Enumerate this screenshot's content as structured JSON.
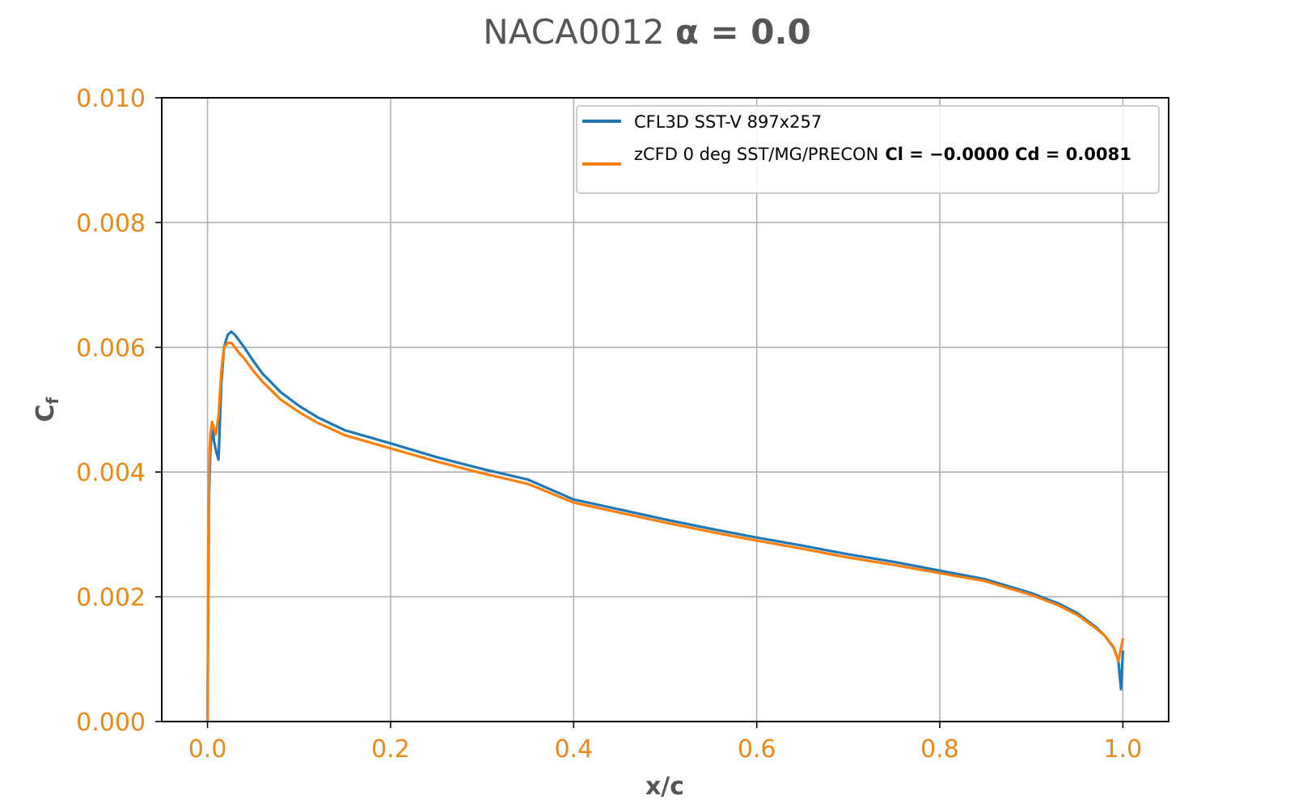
{
  "chart_data": {
    "type": "line",
    "title": {
      "prefix": "NACA0012 ",
      "math": "α = 0.0"
    },
    "xlabel": "x/c",
    "ylabel": {
      "base": "C",
      "sub": "f"
    },
    "xlim": [
      -0.05,
      1.05
    ],
    "ylim": [
      0.0,
      0.01
    ],
    "xticks": [
      0.0,
      0.2,
      0.4,
      0.6,
      0.8,
      1.0
    ],
    "xtick_labels": [
      "0.0",
      "0.2",
      "0.4",
      "0.6",
      "0.8",
      "1.0"
    ],
    "yticks": [
      0.0,
      0.002,
      0.004,
      0.006,
      0.008,
      0.01
    ],
    "ytick_labels": [
      "0.000",
      "0.002",
      "0.004",
      "0.006",
      "0.008",
      "0.010"
    ],
    "grid": true,
    "legend_position": "top-right",
    "colors": {
      "tick_labels": "#e8891a",
      "title": "#555555",
      "grid": "#b0b0b0"
    },
    "series": [
      {
        "name": "CFL3D SST-V 897x257",
        "color": "#1f77b4",
        "x": [
          0.0,
          0.0015,
          0.003,
          0.005,
          0.007,
          0.01,
          0.012,
          0.015,
          0.018,
          0.022,
          0.026,
          0.03,
          0.035,
          0.04,
          0.05,
          0.06,
          0.08,
          0.1,
          0.12,
          0.15,
          0.2,
          0.25,
          0.3,
          0.35,
          0.4,
          0.45,
          0.5,
          0.55,
          0.6,
          0.65,
          0.7,
          0.75,
          0.8,
          0.85,
          0.9,
          0.93,
          0.95,
          0.97,
          0.98,
          0.99,
          0.995,
          0.998,
          1.0
        ],
        "y": [
          0.0,
          0.0035,
          0.0043,
          0.0048,
          0.0045,
          0.0043,
          0.0042,
          0.0054,
          0.006,
          0.0062,
          0.00625,
          0.0062,
          0.0061,
          0.006,
          0.00578,
          0.00558,
          0.00528,
          0.00506,
          0.00488,
          0.00467,
          0.00446,
          0.00424,
          0.00405,
          0.00388,
          0.00356,
          0.0034,
          0.00324,
          0.00309,
          0.00295,
          0.00282,
          0.00268,
          0.00256,
          0.00242,
          0.00228,
          0.00206,
          0.00189,
          0.00174,
          0.00152,
          0.00138,
          0.00118,
          0.00098,
          0.00052,
          0.00112
        ]
      },
      {
        "name": "zCFD 0 deg SST/MG/PRECON",
        "name_math": "Cl = −0.0000 Cd = 0.0081",
        "color": "#ff7f0e",
        "x": [
          0.0,
          0.001,
          0.002,
          0.003,
          0.005,
          0.007,
          0.009,
          0.012,
          0.015,
          0.018,
          0.022,
          0.026,
          0.03,
          0.035,
          0.04,
          0.05,
          0.06,
          0.08,
          0.1,
          0.12,
          0.15,
          0.2,
          0.25,
          0.3,
          0.35,
          0.4,
          0.45,
          0.5,
          0.55,
          0.6,
          0.65,
          0.7,
          0.75,
          0.8,
          0.85,
          0.9,
          0.93,
          0.95,
          0.97,
          0.98,
          0.99,
          0.995,
          1.0
        ],
        "y": [
          0.0,
          0.003,
          0.0042,
          0.0046,
          0.0048,
          0.0047,
          0.0046,
          0.0049,
          0.0056,
          0.006,
          0.00607,
          0.00607,
          0.006,
          0.0059,
          0.00582,
          0.00562,
          0.00545,
          0.00516,
          0.00496,
          0.00479,
          0.00459,
          0.00438,
          0.00417,
          0.00398,
          0.00381,
          0.00351,
          0.00335,
          0.00319,
          0.00304,
          0.0029,
          0.00277,
          0.00263,
          0.00251,
          0.00238,
          0.00225,
          0.00203,
          0.00186,
          0.00171,
          0.0015,
          0.00138,
          0.00119,
          0.00097,
          0.00132
        ]
      }
    ]
  }
}
